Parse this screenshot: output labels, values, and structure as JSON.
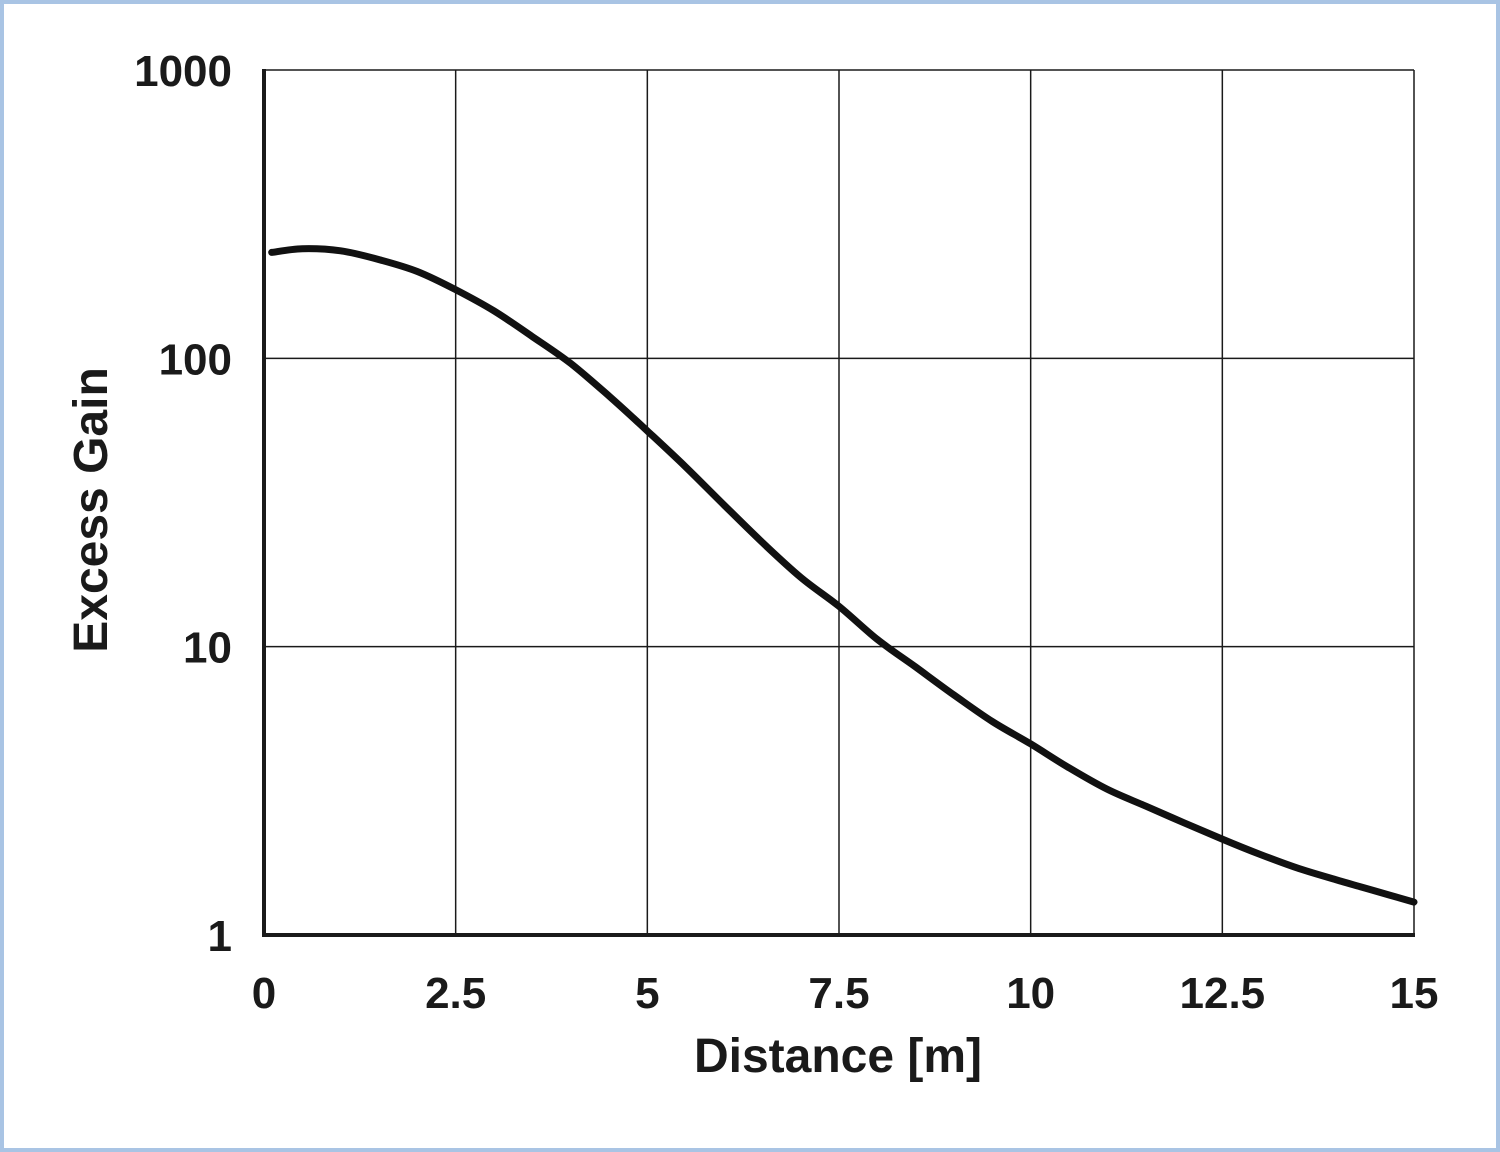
{
  "chart_data": {
    "type": "line",
    "xlabel": "Distance [m]",
    "ylabel": "Excess Gain",
    "xlim": [
      0,
      15
    ],
    "ylim": [
      1,
      1000
    ],
    "yscale": "log",
    "grid": true,
    "x_ticks": [
      "0",
      "2.5",
      "5",
      "7.5",
      "10",
      "12.5",
      "15"
    ],
    "y_ticks": [
      "1000",
      "100",
      "10",
      "1"
    ],
    "series": [
      {
        "x": [
          0.1,
          0.5,
          1.0,
          1.5,
          2.0,
          2.5,
          3.0,
          3.5,
          4.0,
          4.5,
          5.0,
          5.5,
          6.0,
          6.5,
          7.0,
          7.5,
          8.0,
          8.5,
          9.0,
          9.5,
          10.0,
          10.5,
          11.0,
          11.5,
          12.0,
          12.5,
          13.0,
          13.5,
          14.0,
          14.5,
          15.0
        ],
        "y": [
          233,
          240,
          236,
          220,
          200,
          173,
          146,
          119,
          96,
          74,
          56,
          42,
          31,
          23,
          17.4,
          13.8,
          10.6,
          8.5,
          6.8,
          5.5,
          4.6,
          3.8,
          3.2,
          2.8,
          2.45,
          2.15,
          1.9,
          1.7,
          1.55,
          1.42,
          1.3
        ]
      }
    ],
    "line_color": "#111111",
    "grid_color": "#1a1a1a",
    "border_color": "#a9c4e4"
  }
}
